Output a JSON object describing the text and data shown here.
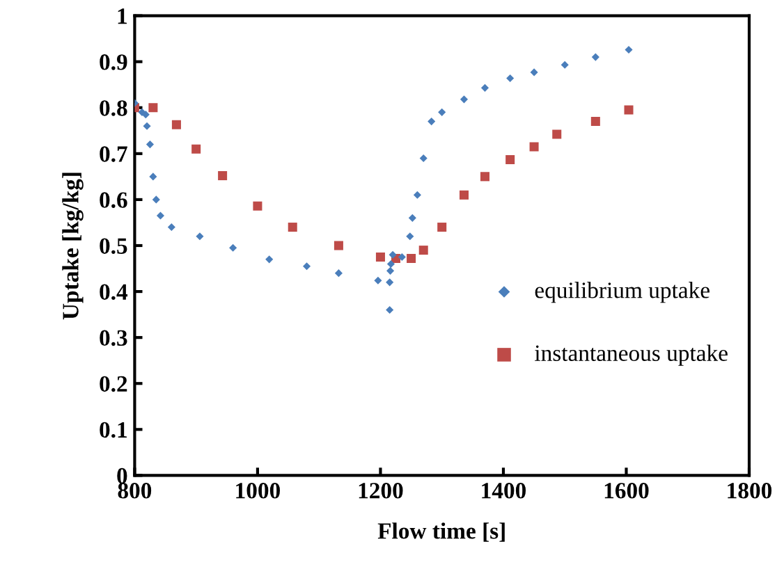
{
  "chart_data": {
    "type": "scatter",
    "xlabel": "Flow time [s]",
    "ylabel": "Uptake [kg/kg]",
    "xlim": [
      800,
      1800
    ],
    "xticks": [
      800,
      1000,
      1200,
      1400,
      1600,
      1800
    ],
    "ylim": [
      0,
      1
    ],
    "yticks": [
      0,
      0.1,
      0.2,
      0.3,
      0.4,
      0.5,
      0.6,
      0.7,
      0.8,
      0.9,
      1
    ],
    "grid": false,
    "legend": "right",
    "series": [
      {
        "name": "equilibrium uptake",
        "color": "#4a7ebb",
        "marker": "diamond",
        "x": [
          800,
          812,
          818,
          820,
          825,
          830,
          835,
          842,
          860,
          906,
          960,
          1019,
          1080,
          1132,
          1196,
          1215,
          1215,
          1216,
          1217,
          1220,
          1235,
          1248,
          1252,
          1260,
          1270,
          1283,
          1300,
          1336,
          1370,
          1411,
          1450,
          1500,
          1550,
          1604
        ],
        "values": [
          0.81,
          0.79,
          0.785,
          0.76,
          0.72,
          0.65,
          0.6,
          0.565,
          0.54,
          0.52,
          0.495,
          0.47,
          0.455,
          0.44,
          0.424,
          0.42,
          0.36,
          0.445,
          0.46,
          0.48,
          0.475,
          0.52,
          0.56,
          0.61,
          0.69,
          0.77,
          0.79,
          0.818,
          0.843,
          0.864,
          0.877,
          0.893,
          0.91,
          0.926
        ]
      },
      {
        "name": "instantaneous uptake",
        "color": "#be4b48",
        "marker": "square",
        "x": [
          800,
          830,
          868,
          900,
          943,
          1000,
          1057,
          1132,
          1200,
          1225,
          1250,
          1270,
          1300,
          1336,
          1370,
          1411,
          1450,
          1487,
          1550,
          1604
        ],
        "values": [
          0.8,
          0.8,
          0.763,
          0.71,
          0.652,
          0.586,
          0.54,
          0.5,
          0.475,
          0.472,
          0.472,
          0.49,
          0.54,
          0.61,
          0.65,
          0.687,
          0.715,
          0.742,
          0.77,
          0.795
        ]
      }
    ]
  }
}
